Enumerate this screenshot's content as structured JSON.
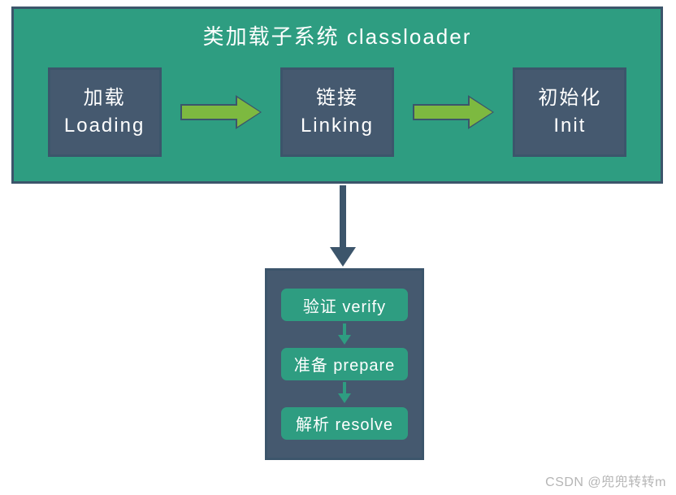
{
  "diagram": {
    "type": "flowchart",
    "title": "类加载子系统  classloader",
    "container": {
      "background_color": "#2e9d81",
      "border_color": "#3c556b",
      "text_color": "#ffffff",
      "title_fontsize": 26
    },
    "stages": [
      {
        "cn": "加载",
        "en": "Loading"
      },
      {
        "cn": "链接",
        "en": "Linking"
      },
      {
        "cn": "初始化",
        "en": "Init"
      }
    ],
    "stage_box": {
      "background_color": "#45596f",
      "border_color": "#3c556b",
      "text_color": "#ffffff",
      "fontsize": 24
    },
    "h_arrow": {
      "fill_color": "#7db940",
      "border_color": "#3c556b"
    },
    "v_arrow": {
      "color": "#3c556b"
    },
    "sub_box": {
      "background_color": "#45596f",
      "border_color": "#3c556b"
    },
    "sub_steps": [
      {
        "label": "验证 verify"
      },
      {
        "label": "准备 prepare"
      },
      {
        "label": "解析 resolve"
      }
    ],
    "pill": {
      "background_color": "#2e9d81",
      "text_color": "#ffffff",
      "fontsize": 20
    },
    "small_arrow_color": "#2e9d81",
    "watermark": "CSDN @兜兜转转m"
  }
}
